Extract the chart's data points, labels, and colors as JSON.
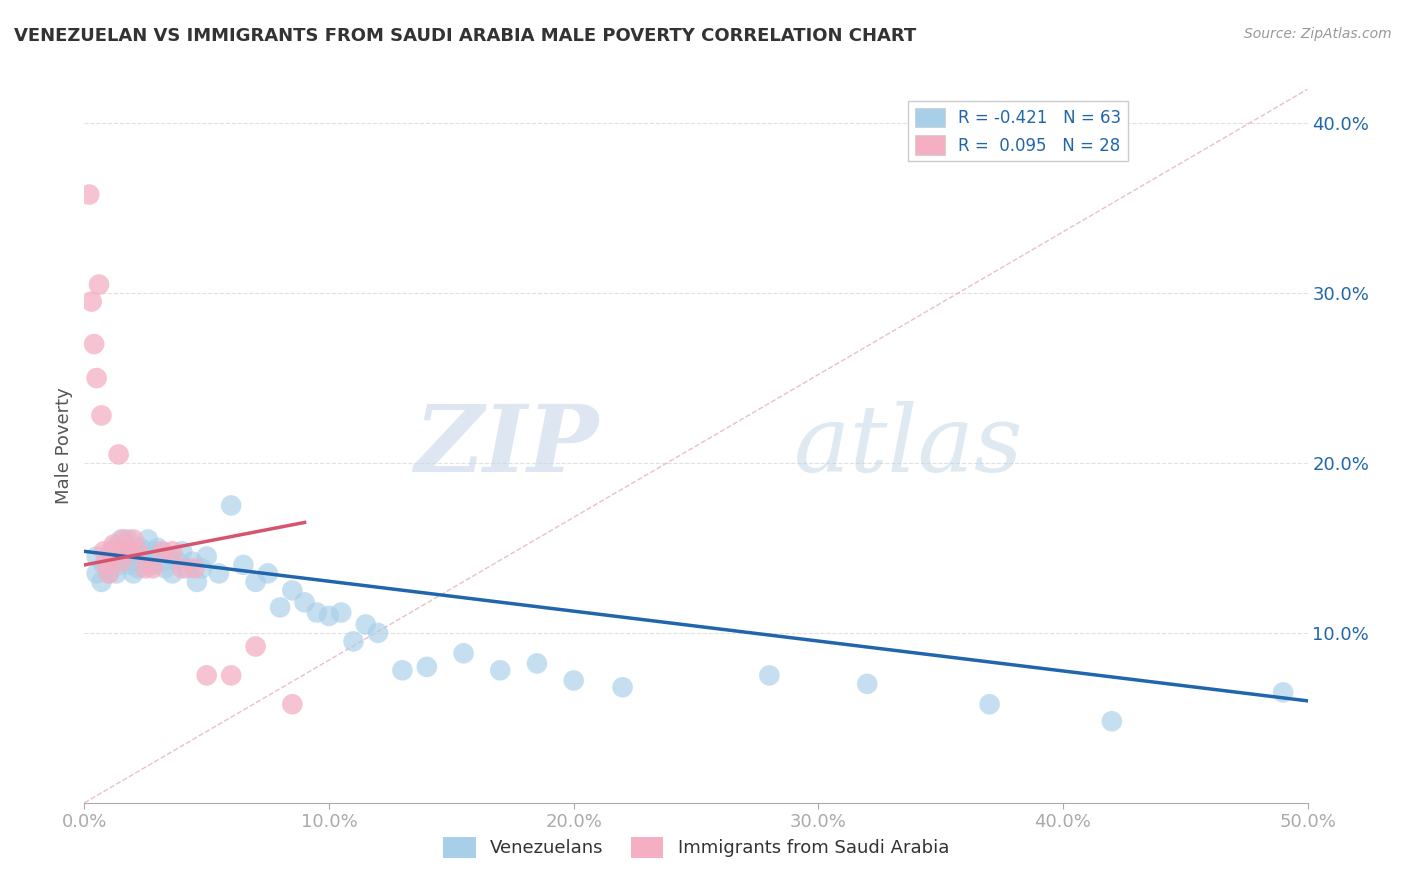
{
  "title": "VENEZUELAN VS IMMIGRANTS FROM SAUDI ARABIA MALE POVERTY CORRELATION CHART",
  "source": "Source: ZipAtlas.com",
  "ylabel_label": "Male Poverty",
  "watermark_zip": "ZIP",
  "watermark_atlas": "atlas",
  "xlim": [
    0.0,
    0.5
  ],
  "ylim": [
    0.0,
    0.42
  ],
  "xtick_vals": [
    0.0,
    0.1,
    0.2,
    0.3,
    0.4,
    0.5
  ],
  "xtick_labels": [
    "0.0%",
    "10.0%",
    "20.0%",
    "30.0%",
    "40.0%",
    "50.0%"
  ],
  "ytick_vals": [
    0.1,
    0.2,
    0.3,
    0.4
  ],
  "ytick_labels": [
    "10.0%",
    "20.0%",
    "30.0%",
    "40.0%"
  ],
  "legend1_label": "R = -0.421   N = 63",
  "legend2_label": "R =  0.095   N = 28",
  "legend_bottom_label1": "Venezuelans",
  "legend_bottom_label2": "Immigrants from Saudi Arabia",
  "blue_dot_color": "#a8cfe8",
  "pink_dot_color": "#f4afc3",
  "blue_line_color": "#2166ac",
  "pink_line_color": "#d6546e",
  "diag_color": "#cccccc",
  "grid_color": "#e0e0e0",
  "venezuelan_x": [
    0.005,
    0.005,
    0.007,
    0.008,
    0.01,
    0.01,
    0.012,
    0.013,
    0.014,
    0.015,
    0.016,
    0.017,
    0.018,
    0.019,
    0.02,
    0.02,
    0.021,
    0.022,
    0.023,
    0.024,
    0.025,
    0.026,
    0.027,
    0.028,
    0.029,
    0.03,
    0.032,
    0.033,
    0.035,
    0.036,
    0.038,
    0.04,
    0.042,
    0.044,
    0.046,
    0.048,
    0.05,
    0.055,
    0.06,
    0.065,
    0.07,
    0.075,
    0.08,
    0.085,
    0.09,
    0.095,
    0.1,
    0.105,
    0.11,
    0.115,
    0.12,
    0.13,
    0.14,
    0.155,
    0.17,
    0.185,
    0.2,
    0.22,
    0.28,
    0.32,
    0.37,
    0.42,
    0.49
  ],
  "venezuelan_y": [
    0.145,
    0.135,
    0.13,
    0.14,
    0.145,
    0.135,
    0.15,
    0.135,
    0.14,
    0.155,
    0.145,
    0.15,
    0.155,
    0.14,
    0.148,
    0.135,
    0.145,
    0.138,
    0.15,
    0.142,
    0.148,
    0.155,
    0.145,
    0.14,
    0.148,
    0.15,
    0.142,
    0.138,
    0.145,
    0.135,
    0.142,
    0.148,
    0.138,
    0.142,
    0.13,
    0.138,
    0.145,
    0.135,
    0.175,
    0.14,
    0.13,
    0.135,
    0.115,
    0.125,
    0.118,
    0.112,
    0.11,
    0.112,
    0.095,
    0.105,
    0.1,
    0.078,
    0.08,
    0.088,
    0.078,
    0.082,
    0.072,
    0.068,
    0.075,
    0.07,
    0.058,
    0.048,
    0.065
  ],
  "saudi_x": [
    0.002,
    0.003,
    0.004,
    0.005,
    0.006,
    0.007,
    0.008,
    0.009,
    0.01,
    0.011,
    0.012,
    0.013,
    0.014,
    0.015,
    0.016,
    0.018,
    0.02,
    0.022,
    0.025,
    0.028,
    0.032,
    0.036,
    0.04,
    0.045,
    0.05,
    0.06,
    0.07,
    0.085
  ],
  "saudi_y": [
    0.358,
    0.295,
    0.27,
    0.25,
    0.305,
    0.228,
    0.148,
    0.14,
    0.135,
    0.148,
    0.152,
    0.148,
    0.205,
    0.142,
    0.155,
    0.148,
    0.155,
    0.148,
    0.138,
    0.138,
    0.148,
    0.148,
    0.138,
    0.138,
    0.075,
    0.075,
    0.092,
    0.058
  ],
  "blue_trend_x": [
    0.0,
    0.5
  ],
  "blue_trend_y": [
    0.148,
    0.06
  ],
  "pink_trend_x": [
    0.0,
    0.09
  ],
  "pink_trend_y": [
    0.14,
    0.165
  ]
}
